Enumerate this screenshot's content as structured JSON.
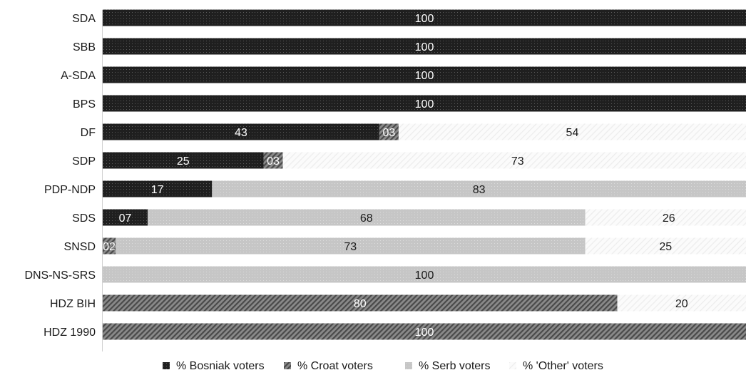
{
  "chart_data": {
    "type": "bar",
    "orientation": "horizontal",
    "stacked": true,
    "categories": [
      "SDA",
      "SBB",
      "A-SDA",
      "BPS",
      "DF",
      "SDP",
      "PDP-NDP",
      "SDS",
      "SNSD",
      "DNS-NS-SRS",
      "HDZ BIH",
      "HDZ 1990"
    ],
    "series": [
      {
        "name": "% Bosniak voters",
        "color": "#222222",
        "pattern": "dots-dark",
        "values": [
          100,
          100,
          100,
          100,
          43,
          25,
          17,
          7,
          0,
          0,
          0,
          0
        ],
        "labels": [
          "100",
          "100",
          "100",
          "100",
          "43",
          "25",
          "17",
          "07",
          "",
          "",
          "",
          ""
        ]
      },
      {
        "name": "% Croat voters",
        "color": "#6e6e6e",
        "pattern": "diagonal-dark",
        "values": [
          0,
          0,
          0,
          0,
          3,
          3,
          0,
          0,
          2,
          0,
          80,
          100
        ],
        "labels": [
          "",
          "",
          "",
          "",
          "03",
          "03",
          "",
          "",
          "02",
          "",
          "80",
          "100"
        ]
      },
      {
        "name": "% Serb voters",
        "color": "#c4c4c4",
        "pattern": "dots-light",
        "values": [
          0,
          0,
          0,
          0,
          0,
          0,
          83,
          68,
          73,
          100,
          0,
          0
        ],
        "labels": [
          "",
          "",
          "",
          "",
          "",
          "",
          "83",
          "68",
          "73",
          "100",
          "",
          ""
        ]
      },
      {
        "name": "% 'Other' voters",
        "color": "#f2f2f2",
        "pattern": "diagonal-light",
        "values": [
          0,
          0,
          0,
          0,
          54,
          73,
          0,
          26,
          25,
          0,
          20,
          0
        ],
        "labels": [
          "",
          "",
          "",
          "",
          "54",
          "73",
          "",
          "26",
          "25",
          "",
          "20",
          ""
        ]
      }
    ],
    "xlim": [
      0,
      100
    ],
    "grid": false,
    "legend_position": "bottom",
    "title": "",
    "xlabel": "",
    "ylabel": ""
  }
}
